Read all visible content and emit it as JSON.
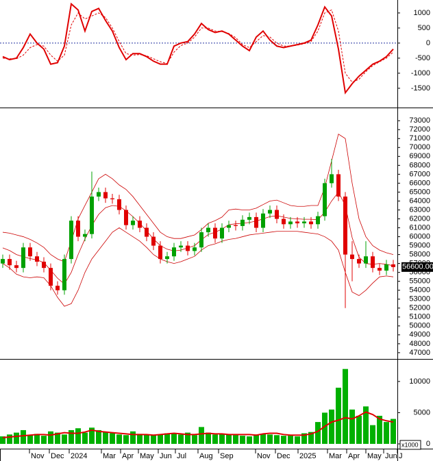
{
  "chart_data": [
    {
      "type": "line",
      "values": [
        -450,
        -550,
        -500,
        -150,
        300,
        0,
        -200,
        -700,
        -650,
        -100,
        1300,
        1100,
        400,
        1050,
        1150,
        750,
        400,
        -150,
        -550,
        -350,
        -350,
        -450,
        -600,
        -700,
        -700,
        -100,
        0,
        50,
        300,
        650,
        450,
        350,
        400,
        300,
        100,
        -100,
        -250,
        200,
        400,
        100,
        -100,
        -150,
        -100,
        -50,
        0,
        100,
        600,
        1200,
        900,
        -200,
        -1650,
        -1350,
        -1100,
        -900,
        -700,
        -600,
        -450,
        -200
      ],
      "signal": [
        -500,
        -520,
        -520,
        -400,
        -150,
        -50,
        -100,
        -400,
        -600,
        -400,
        600,
        1000,
        800,
        900,
        1000,
        850,
        500,
        50,
        -350,
        -400,
        -380,
        -420,
        -520,
        -620,
        -680,
        -300,
        -80,
        0,
        200,
        500,
        500,
        400,
        380,
        320,
        180,
        -50,
        -150,
        50,
        250,
        200,
        0,
        -100,
        -100,
        -70,
        -20,
        50,
        400,
        1000,
        1100,
        400,
        -1000,
        -1300,
        -1200,
        -950,
        -750,
        -620,
        -500,
        -300
      ],
      "color": "#e00000",
      "xlim": [
        -0.4,
        57.6
      ],
      "ylim": [
        -2140,
        1430
      ],
      "yticks": [
        -1500,
        -1000,
        -500,
        0,
        500,
        1000
      ]
    },
    {
      "type": "candlestick",
      "open": [
        57000,
        57500,
        56800,
        56500,
        58800,
        57800,
        57200,
        56500,
        54500,
        54000,
        57500,
        61800,
        60000,
        60300,
        64500,
        65000,
        64300,
        64200,
        63000,
        61300,
        61800,
        61000,
        60000,
        59000,
        57500,
        57800,
        58800,
        59000,
        58400,
        58800,
        60500,
        61000,
        59800,
        61000,
        61300,
        61200,
        61900,
        62200,
        61000,
        62600,
        63000,
        62000,
        61400,
        61700,
        61500,
        61700,
        61400,
        62300,
        66000,
        67000,
        64500,
        58000,
        57500,
        57000,
        57800,
        56500,
        56200,
        56900
      ],
      "high": [
        58000,
        58000,
        57300,
        59300,
        59300,
        58300,
        57700,
        57000,
        55000,
        58000,
        62300,
        62300,
        60800,
        67300,
        65500,
        65500,
        64800,
        64700,
        63500,
        62300,
        62300,
        61500,
        60500,
        59500,
        58300,
        59300,
        59500,
        59500,
        59300,
        61000,
        61500,
        61500,
        61500,
        61800,
        61800,
        62400,
        62700,
        62700,
        63100,
        63500,
        63500,
        62500,
        62200,
        62200,
        62200,
        62200,
        62800,
        66500,
        68700,
        67500,
        65000,
        59500,
        58000,
        59500,
        58300,
        57000,
        57400,
        57400
      ],
      "low": [
        56500,
        56300,
        56000,
        56000,
        57300,
        56700,
        56000,
        54000,
        53500,
        53500,
        57000,
        59500,
        59500,
        59800,
        64000,
        63800,
        63700,
        62500,
        60800,
        60800,
        60500,
        59500,
        58500,
        57000,
        57000,
        57300,
        58300,
        57900,
        57900,
        58300,
        60000,
        59300,
        59300,
        60500,
        60700,
        60700,
        61400,
        60500,
        60500,
        62100,
        61500,
        60900,
        60900,
        61000,
        61000,
        60900,
        60900,
        61800,
        65500,
        64000,
        52000,
        55000,
        56500,
        56500,
        56000,
        55700,
        55700,
        56100
      ],
      "close": [
        57500,
        56800,
        56500,
        58800,
        57800,
        57200,
        56500,
        54500,
        54000,
        57500,
        61800,
        60000,
        60300,
        64500,
        65000,
        64300,
        64200,
        63000,
        61300,
        61800,
        61000,
        60000,
        59000,
        57500,
        57800,
        58800,
        59000,
        58400,
        58800,
        60500,
        61000,
        59800,
        61000,
        61300,
        61200,
        61900,
        62200,
        61000,
        62600,
        63000,
        62000,
        61400,
        61700,
        61500,
        61700,
        61400,
        62300,
        66000,
        67000,
        64500,
        58000,
        57500,
        57000,
        57800,
        56500,
        56200,
        56900,
        56600
      ],
      "upper_band": [
        60500,
        60400,
        60200,
        60000,
        59700,
        59300,
        58800,
        58000,
        57500,
        57200,
        59500,
        62000,
        63500,
        65000,
        66500,
        67000,
        66500,
        65800,
        65300,
        64500,
        63500,
        62500,
        61500,
        60500,
        60000,
        59800,
        59800,
        60000,
        60200,
        60800,
        61500,
        61800,
        62200,
        63000,
        63100,
        63000,
        63000,
        63200,
        63600,
        64000,
        64100,
        63800,
        63500,
        63400,
        63400,
        63500,
        63500,
        65500,
        68500,
        71500,
        71000,
        66000,
        62000,
        60000,
        59000,
        58500,
        58200,
        58000
      ],
      "middle_band": [
        58750,
        58450,
        58000,
        57750,
        57550,
        57400,
        57100,
        56250,
        55350,
        54700,
        56000,
        58000,
        59750,
        61250,
        62500,
        63250,
        63500,
        63400,
        62900,
        62250,
        61500,
        60650,
        59750,
        59000,
        58600,
        58400,
        58500,
        58750,
        59000,
        59650,
        60250,
        60500,
        60850,
        61350,
        61450,
        61500,
        61600,
        61750,
        62000,
        62250,
        62350,
        62200,
        62050,
        62000,
        61950,
        61950,
        61900,
        62750,
        64000,
        65000,
        63500,
        59900,
        57700,
        57000,
        56900,
        57000,
        56900,
        56750
      ],
      "lower_band": [
        57000,
        56500,
        55800,
        55500,
        55400,
        55500,
        55400,
        54500,
        53200,
        52200,
        52500,
        54000,
        56000,
        57500,
        58500,
        59500,
        60500,
        61000,
        60500,
        60000,
        59500,
        58800,
        58000,
        57500,
        57200,
        57000,
        57200,
        57500,
        57800,
        58500,
        59000,
        59200,
        59500,
        59700,
        59800,
        60000,
        60200,
        60300,
        60400,
        60500,
        60600,
        60600,
        60600,
        60600,
        60500,
        60400,
        60300,
        60000,
        59500,
        58500,
        56000,
        53800,
        53400,
        54000,
        54800,
        55500,
        55600,
        55500
      ],
      "up_color": "#00a000",
      "down_color": "#e00000",
      "band_color": "#cc0000",
      "last_price": {
        "value": 56600,
        "label": "56600.00"
      },
      "xlim": [
        -0.4,
        57.6
      ],
      "ylim": [
        46300,
        74400
      ],
      "yticks": [
        47000,
        48000,
        49000,
        50000,
        51000,
        52000,
        53000,
        54000,
        55000,
        56000,
        57000,
        58000,
        59000,
        60000,
        61000,
        62000,
        63000,
        64000,
        65000,
        66000,
        67000,
        68000,
        69000,
        70000,
        71000,
        72000,
        73000
      ]
    },
    {
      "type": "bar",
      "values": [
        1200,
        1500,
        1800,
        2200,
        1400,
        1600,
        1300,
        2000,
        1800,
        1500,
        2200,
        2500,
        1800,
        2600,
        2200,
        1900,
        1700,
        1500,
        1400,
        2000,
        1600,
        1500,
        1400,
        1500,
        1700,
        1600,
        1500,
        1800,
        1400,
        2700,
        1800,
        1500,
        1600,
        1500,
        1400,
        1300,
        1200,
        1500,
        1600,
        1500,
        1400,
        1300,
        1300,
        1200,
        1700,
        1900,
        3500,
        5000,
        5500,
        9000,
        12000,
        5500,
        4500,
        6000,
        3000,
        4500,
        3500,
        4000
      ],
      "moving_average": [
        1000,
        1100,
        1200,
        1300,
        1400,
        1500,
        1500,
        1400,
        1600,
        1800,
        1700,
        1700,
        1900,
        2200,
        2000,
        1900,
        1800,
        1700,
        1600,
        1500,
        1500,
        1500,
        1400,
        1500,
        1600,
        1700,
        1600,
        1500,
        1500,
        1600,
        1700,
        1600,
        1600,
        1500,
        1500,
        1500,
        1500,
        1400,
        1600,
        1700,
        1700,
        1500,
        1400,
        1400,
        1400,
        1600,
        2000,
        2800,
        3500,
        3800,
        4200,
        4000,
        4500,
        5100,
        4700,
        4000,
        3700,
        3500
      ],
      "color": "#00b000",
      "ma_color": "#e00000",
      "unit_label": "x1000",
      "xlim": [
        -0.4,
        57.6
      ],
      "ylim": [
        -770,
        13500
      ],
      "yticks": [
        0,
        5000,
        10000
      ],
      "xticks": [
        {
          "value": 3.9,
          "label": "Nov"
        },
        {
          "value": 6.8,
          "label": "Dec"
        },
        {
          "value": 9.7,
          "label": "2024"
        },
        {
          "value": 14.4,
          "label": "Mar"
        },
        {
          "value": 17.2,
          "label": "Apr"
        },
        {
          "value": 19.8,
          "label": "May"
        },
        {
          "value": 22.7,
          "label": "Jun"
        },
        {
          "value": 25.2,
          "label": "Jul"
        },
        {
          "value": 28.5,
          "label": "Aug"
        },
        {
          "value": 31.5,
          "label": "Sep"
        },
        {
          "value": 36.9,
          "label": "Nov"
        },
        {
          "value": 39.8,
          "label": "Dec"
        },
        {
          "value": 43.1,
          "label": "2025"
        },
        {
          "value": 47.4,
          "label": "Mar"
        },
        {
          "value": 50.2,
          "label": "Apr"
        },
        {
          "value": 53.0,
          "label": "May"
        },
        {
          "value": 55.6,
          "label": "Jun"
        },
        {
          "value": 57.6,
          "label": "J"
        }
      ]
    }
  ]
}
